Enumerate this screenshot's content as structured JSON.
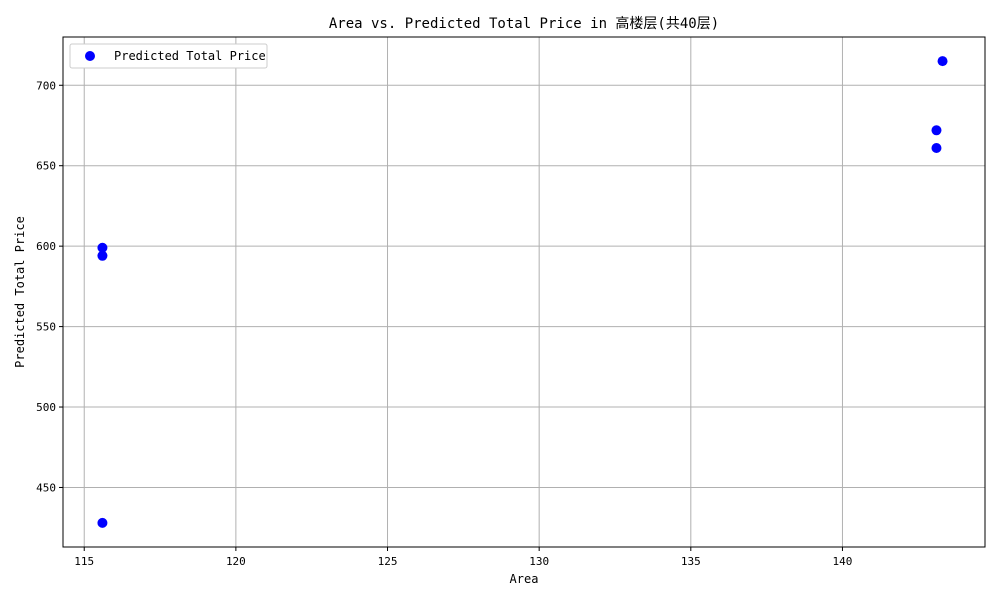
{
  "chart_data": {
    "type": "scatter",
    "title": "Area vs. Predicted Total Price in 高楼层(共40层)",
    "xlabel": "Area",
    "ylabel": "Predicted Total Price",
    "xlim": [
      114.3,
      144.7
    ],
    "ylim": [
      413,
      730
    ],
    "x_ticks": [
      115,
      120,
      125,
      130,
      135,
      140
    ],
    "y_ticks": [
      450,
      500,
      550,
      600,
      650,
      700
    ],
    "grid": true,
    "legend": {
      "position": "top-left",
      "entries": [
        "Predicted Total Price"
      ]
    },
    "series": [
      {
        "name": "Predicted Total Price",
        "color": "#0000ff",
        "marker": "circle",
        "points": [
          {
            "x": 115.6,
            "y": 428
          },
          {
            "x": 115.6,
            "y": 594
          },
          {
            "x": 115.6,
            "y": 599
          },
          {
            "x": 143.1,
            "y": 661
          },
          {
            "x": 143.1,
            "y": 672
          },
          {
            "x": 143.3,
            "y": 715
          }
        ]
      }
    ]
  }
}
